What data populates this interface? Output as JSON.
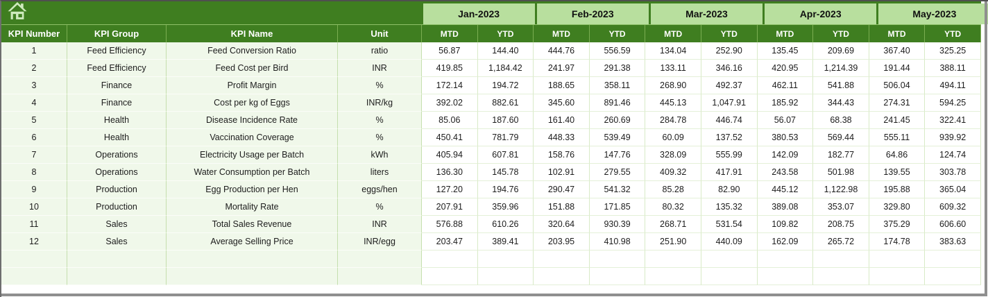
{
  "theme": {
    "header_dark_green": "#3f7e20",
    "month_light_green": "#b8df9e",
    "row_pale_green": "#f0f8ea",
    "gridline_green": "#c5dfae",
    "header_text": "#ffffff",
    "body_text": "#1c1c1c",
    "frame_gray": "#8f8f8f"
  },
  "table": {
    "corner_icon": "home-icon",
    "left_headers": [
      "KPI Number",
      "KPI Group",
      "KPI Name",
      "Unit"
    ],
    "months": [
      "Jan-2023",
      "Feb-2023",
      "Mar-2023",
      "Apr-2023",
      "May-2023"
    ],
    "period_subheaders": [
      "MTD",
      "YTD"
    ],
    "rows": [
      {
        "kpi_number": "1",
        "kpi_group": "Feed Efficiency",
        "kpi_name": "Feed Conversion Ratio",
        "unit": "ratio",
        "values": [
          "56.87",
          "144.40",
          "444.76",
          "556.59",
          "134.04",
          "252.90",
          "135.45",
          "209.69",
          "367.40",
          "325.25"
        ]
      },
      {
        "kpi_number": "2",
        "kpi_group": "Feed Efficiency",
        "kpi_name": "Feed Cost per Bird",
        "unit": "INR",
        "values": [
          "419.85",
          "1,184.42",
          "241.97",
          "291.38",
          "133.11",
          "346.16",
          "420.95",
          "1,214.39",
          "191.44",
          "388.11"
        ]
      },
      {
        "kpi_number": "3",
        "kpi_group": "Finance",
        "kpi_name": "Profit Margin",
        "unit": "%",
        "values": [
          "172.14",
          "194.72",
          "188.65",
          "358.11",
          "268.90",
          "492.37",
          "462.11",
          "541.88",
          "506.04",
          "494.11"
        ]
      },
      {
        "kpi_number": "4",
        "kpi_group": "Finance",
        "kpi_name": "Cost per kg of Eggs",
        "unit": "INR/kg",
        "values": [
          "392.02",
          "882.61",
          "345.60",
          "891.46",
          "445.13",
          "1,047.91",
          "185.92",
          "344.43",
          "274.31",
          "594.25"
        ]
      },
      {
        "kpi_number": "5",
        "kpi_group": "Health",
        "kpi_name": "Disease Incidence Rate",
        "unit": "%",
        "values": [
          "85.06",
          "187.60",
          "161.40",
          "260.69",
          "284.78",
          "446.74",
          "56.07",
          "68.38",
          "241.45",
          "322.41"
        ]
      },
      {
        "kpi_number": "6",
        "kpi_group": "Health",
        "kpi_name": "Vaccination Coverage",
        "unit": "%",
        "values": [
          "450.41",
          "781.79",
          "448.33",
          "539.49",
          "60.09",
          "137.52",
          "380.53",
          "569.44",
          "555.11",
          "939.92"
        ]
      },
      {
        "kpi_number": "7",
        "kpi_group": "Operations",
        "kpi_name": "Electricity Usage per Batch",
        "unit": "kWh",
        "values": [
          "405.94",
          "607.81",
          "158.76",
          "147.76",
          "328.09",
          "555.99",
          "142.09",
          "182.77",
          "64.86",
          "124.74"
        ]
      },
      {
        "kpi_number": "8",
        "kpi_group": "Operations",
        "kpi_name": "Water Consumption per Batch",
        "unit": "liters",
        "values": [
          "136.30",
          "145.78",
          "102.91",
          "279.55",
          "409.32",
          "417.91",
          "243.58",
          "501.98",
          "139.55",
          "303.78"
        ]
      },
      {
        "kpi_number": "9",
        "kpi_group": "Production",
        "kpi_name": "Egg Production per Hen",
        "unit": "eggs/hen",
        "values": [
          "127.20",
          "194.76",
          "290.47",
          "541.32",
          "85.28",
          "82.90",
          "445.12",
          "1,122.98",
          "195.88",
          "365.04"
        ]
      },
      {
        "kpi_number": "10",
        "kpi_group": "Production",
        "kpi_name": "Mortality Rate",
        "unit": "%",
        "values": [
          "207.91",
          "359.96",
          "151.88",
          "171.85",
          "80.32",
          "135.32",
          "389.08",
          "353.07",
          "329.80",
          "609.32"
        ]
      },
      {
        "kpi_number": "11",
        "kpi_group": "Sales",
        "kpi_name": "Total Sales Revenue",
        "unit": "INR",
        "values": [
          "576.88",
          "610.26",
          "320.64",
          "930.39",
          "268.71",
          "531.54",
          "109.82",
          "208.75",
          "375.29",
          "606.60"
        ]
      },
      {
        "kpi_number": "12",
        "kpi_group": "Sales",
        "kpi_name": "Average Selling Price",
        "unit": "INR/egg",
        "values": [
          "203.47",
          "389.41",
          "203.95",
          "410.98",
          "251.90",
          "440.09",
          "162.09",
          "265.72",
          "174.78",
          "383.63"
        ]
      }
    ],
    "empty_row_count": 2
  }
}
